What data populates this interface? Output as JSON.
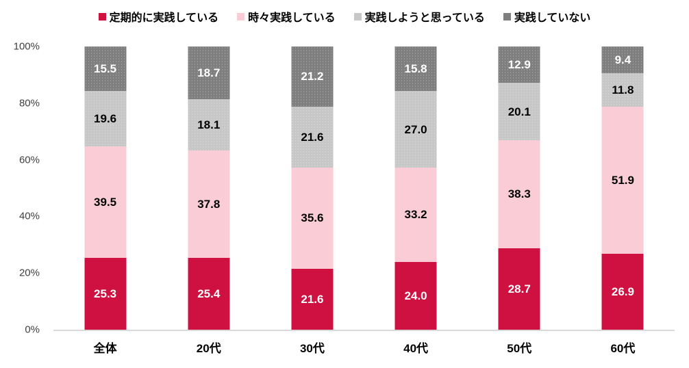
{
  "chart_data": {
    "type": "bar",
    "stacked": true,
    "percent_stacked": true,
    "title": "",
    "xlabel": "",
    "ylabel": "",
    "ylim": [
      0,
      100
    ],
    "grid": false,
    "legend_position": "top",
    "categories": [
      "全体",
      "20代",
      "30代",
      "40代",
      "50代",
      "60代"
    ],
    "y_ticks": [
      "0%",
      "20%",
      "40%",
      "60%",
      "80%",
      "100%"
    ],
    "series": [
      {
        "name": "定期的に実践している",
        "color": "#ce1141",
        "label_color": "#ffffff",
        "pattern": "solid",
        "values": [
          "25.3",
          "25.4",
          "21.6",
          "24.0",
          "28.7",
          "26.9"
        ]
      },
      {
        "name": "時々実践している",
        "color": "#facdd6",
        "label_color": "#000000",
        "pattern": "solid",
        "values": [
          "39.5",
          "37.8",
          "35.6",
          "33.2",
          "38.3",
          "51.9"
        ]
      },
      {
        "name": "実践しようと思っている",
        "color": "#c7c7c7",
        "label_color": "#000000",
        "pattern": "dots",
        "values": [
          "19.6",
          "18.1",
          "21.6",
          "27.0",
          "20.1",
          "11.8"
        ]
      },
      {
        "name": "実践していない",
        "color": "#7f7f7f",
        "label_color": "#ffffff",
        "pattern": "dots",
        "values": [
          "15.5",
          "18.7",
          "21.2",
          "15.8",
          "12.9",
          "9.4"
        ]
      }
    ],
    "axis_line_color": "#d9d9d9",
    "tick_label_color": "#3f3f3f"
  }
}
